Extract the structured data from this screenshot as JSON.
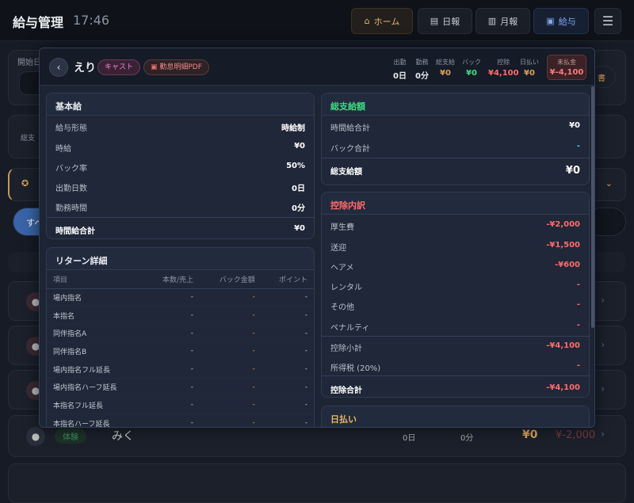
{
  "header": {
    "title": "給与管理",
    "time": "17:46",
    "nav": [
      {
        "label": "ホーム",
        "icon": "home-icon"
      },
      {
        "label": "日報",
        "icon": "document-icon"
      },
      {
        "label": "月報",
        "icon": "bar-chart-icon"
      },
      {
        "label": "給与",
        "icon": "money-icon"
      }
    ],
    "menu_icon": "hamburger-icon"
  },
  "background": {
    "start_date_label": "開始日",
    "total_label": "総支",
    "all_button": "すべ",
    "pdf_button_tail": "書",
    "last_row": {
      "badge": "体験",
      "name": "みく",
      "days": "0日",
      "minutes": "0分",
      "pay": "¥0",
      "balance": "¥-2,000"
    }
  },
  "modal": {
    "name": "えり",
    "role_badge": "キャスト",
    "pdf_button": "勤怠明細PDF",
    "stats": [
      {
        "label": "出勤",
        "value": "0日"
      },
      {
        "label": "勤務",
        "value": "0分"
      },
      {
        "label": "総支給",
        "value": "¥0"
      },
      {
        "label": "バック",
        "value": "¥0"
      },
      {
        "label": "控除",
        "value": "¥4,100"
      },
      {
        "label": "日払い",
        "value": "¥0"
      }
    ],
    "unpaid": {
      "label": "未払金",
      "value": "¥-4,100"
    },
    "base": {
      "title": "基本給",
      "rows": [
        {
          "label": "給与形態",
          "value": "時給制"
        },
        {
          "label": "時給",
          "value": "¥0"
        },
        {
          "label": "バック率",
          "value": "50%"
        },
        {
          "label": "出勤日数",
          "value": "0日"
        },
        {
          "label": "勤務時間",
          "value": "0分"
        }
      ],
      "total": {
        "label": "時間給合計",
        "value": "¥0"
      }
    },
    "returns": {
      "title": "リターン詳細",
      "columns": [
        "項目",
        "本数/売上",
        "バック金額",
        "ポイント"
      ],
      "rows": [
        [
          "場内指名",
          "-",
          "-",
          "-"
        ],
        [
          "本指名",
          "-",
          "-",
          "-"
        ],
        [
          "同伴指名A",
          "-",
          "-",
          "-"
        ],
        [
          "同伴指名B",
          "-",
          "-",
          "-"
        ],
        [
          "場内指名フル延長",
          "-",
          "-",
          "-"
        ],
        [
          "場内指名ハーフ延長",
          "-",
          "-",
          "-"
        ],
        [
          "本指名フル延長",
          "-",
          "-",
          "-"
        ],
        [
          "本指名ハーフ延長",
          "-",
          "-",
          "-"
        ]
      ]
    },
    "gross": {
      "title": "総支給額",
      "rows": [
        {
          "label": "時間給合計",
          "value": "¥0"
        },
        {
          "label": "バック合計",
          "value": "-"
        }
      ],
      "total": {
        "label": "総支給額",
        "value": "¥0"
      }
    },
    "deductions": {
      "title": "控除内訳",
      "rows": [
        {
          "label": "厚生費",
          "value": "-¥2,000"
        },
        {
          "label": "送迎",
          "value": "-¥1,500"
        },
        {
          "label": "ヘアメ",
          "value": "-¥600"
        },
        {
          "label": "レンタル",
          "value": "-"
        },
        {
          "label": "その他",
          "value": "-"
        },
        {
          "label": "ペナルティ",
          "value": "-"
        }
      ],
      "subtotal": {
        "label": "控除小計",
        "value": "-¥4,100"
      },
      "tax": {
        "label": "所得税 (20%)",
        "value": "-"
      },
      "total": {
        "label": "控除合計",
        "value": "-¥4,100"
      }
    },
    "daily_pay": {
      "title": "日払い"
    }
  },
  "colors": {
    "accent_orange": "#e8b66a",
    "accent_blue": "#7ea8ee",
    "negative": "#ff6b6b",
    "positive": "#3ddc84"
  }
}
